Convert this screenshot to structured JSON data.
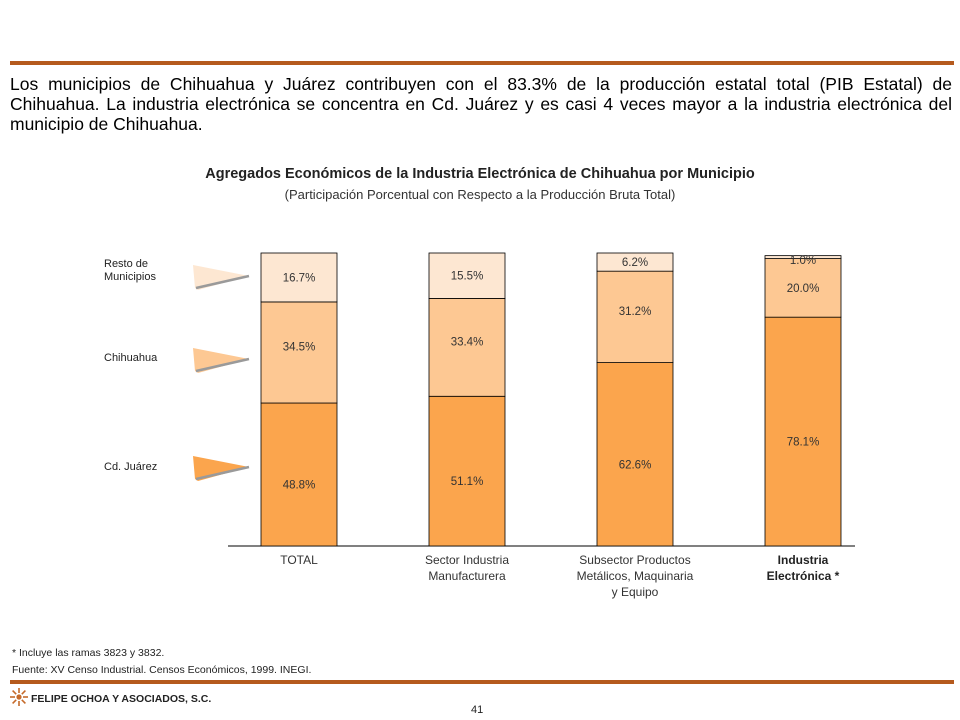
{
  "intro_text": "Los municipios de Chihuahua y Juárez contribuyen con el 83.3% de la producción estatal total (PIB Estatal) de Chihuahua. La industria electrónica se concentra en Cd. Juárez y es casi 4 veces mayor a la industria electrónica del municipio de Chihuahua.",
  "colors": {
    "rule": "#b55a1d",
    "cd_juarez": "#fba54d",
    "chihuahua": "#fdc893",
    "resto": "#fde7d2"
  },
  "chart_data": {
    "type": "bar",
    "stacked": true,
    "title": "Agregados Económicos de la Industria Electrónica de Chihuahua por Municipio",
    "subtitle": "(Participación Porcentual con Respecto a la Producción Bruta Total)",
    "categories": [
      "TOTAL",
      "Sector Industria Manufacturera",
      "Subsector Productos Metálicos, Maquinaria y Equipo",
      "Industria Electrónica *"
    ],
    "category_lines": [
      [
        "TOTAL"
      ],
      [
        "Sector Industria",
        "Manufacturera"
      ],
      [
        "Subsector Productos",
        "Metálicos, Maquinaria",
        "y Equipo"
      ],
      [
        "Industria",
        "Electrónica *"
      ]
    ],
    "series": [
      {
        "name": "Cd. Juárez",
        "values": [
          48.8,
          51.1,
          62.6,
          78.1
        ],
        "labels": [
          "48.8%",
          "51.1%",
          "62.6%",
          "78.1%"
        ]
      },
      {
        "name": "Chihuahua",
        "values": [
          34.5,
          33.4,
          31.2,
          20.0
        ],
        "labels": [
          "34.5%",
          "33.4%",
          "31.2%",
          "20.0%"
        ]
      },
      {
        "name": "Resto de Municipios",
        "values": [
          16.7,
          15.5,
          6.2,
          1.0
        ],
        "labels": [
          "16.7%",
          "15.5%",
          "6.2%",
          "1.0%"
        ]
      }
    ],
    "legend_lines": {
      "resto": [
        "Resto de",
        "Municipios"
      ],
      "chihuahua": "Chihuahua",
      "juarez": "Cd. Juárez"
    },
    "ylim": [
      0,
      100
    ],
    "grid": false,
    "legend_position": "left"
  },
  "footnotes": {
    "note": "* Incluye las ramas 3823 y 3832.",
    "source": "Fuente: XV Censo Industrial. Censos Económicos, 1999. INEGI."
  },
  "footer": {
    "company": "FELIPE OCHOA Y ASOCIADOS, S.C.",
    "page_number": "41"
  }
}
